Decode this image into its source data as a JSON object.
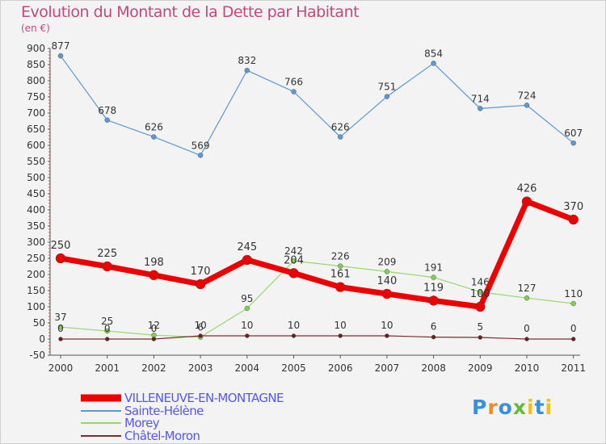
{
  "title": "Evolution du Montant de la Dette par Habitant",
  "subtitle": "(en €)",
  "logo": "Proxiti",
  "chart_data": {
    "type": "line",
    "title": "Evolution du Montant de la Dette par Habitant",
    "subtitle": "(en €)",
    "xlabel": "",
    "ylabel": "",
    "ylim": [
      -50,
      900
    ],
    "ytick_step": 50,
    "grid": false,
    "legend_position": "bottom-left",
    "x": [
      "2000",
      "2001",
      "2002",
      "2003",
      "2004",
      "2005",
      "2006",
      "2007",
      "2008",
      "2009",
      "2010",
      "2011"
    ],
    "series": [
      {
        "name": "Sainte-Hélène",
        "color": "#5a99d4",
        "values": [
          877,
          678,
          626,
          569,
          832,
          766,
          626,
          751,
          854,
          714,
          724,
          607
        ]
      },
      {
        "name": "Morey",
        "color": "#97d86c",
        "values": [
          37,
          25,
          12,
          6,
          95,
          242,
          226,
          209,
          191,
          146,
          127,
          110
        ]
      },
      {
        "name": "Châtel-Moron",
        "color": "#7a2e2e",
        "values": [
          0,
          0,
          0,
          10,
          10,
          10,
          10,
          10,
          6,
          5,
          0,
          0
        ]
      },
      {
        "name": "VILLENEUVE-EN-MONTAGNE",
        "color": "#ee0000",
        "values": [
          250,
          225,
          198,
          170,
          245,
          204,
          161,
          140,
          119,
          100,
          426,
          370
        ]
      }
    ],
    "legend_order": [
      "VILLENEUVE-EN-MONTAGNE",
      "Sainte-Hélène",
      "Morey",
      "Châtel-Moron"
    ],
    "legend_colors": {
      "VILLENEUVE-EN-MONTAGNE": "#5555ff",
      "Sainte-Hélène": "#5555ff",
      "Morey": "#5555ff",
      "Châtel-Moron": "#5555ff"
    }
  }
}
